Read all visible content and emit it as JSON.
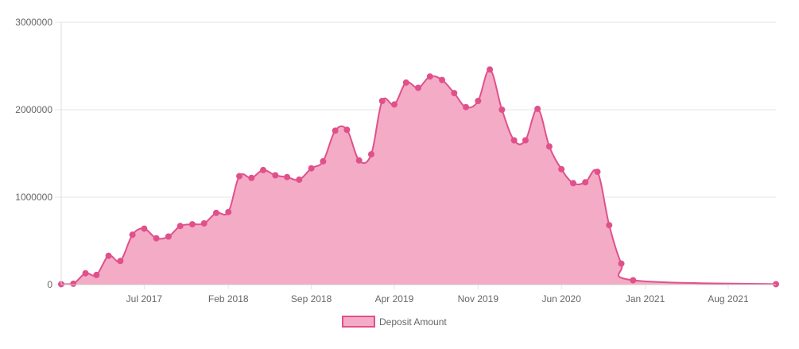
{
  "chart_data": {
    "type": "area",
    "x_axis": {
      "type": "time",
      "tick_labels": [
        "Jul 2017",
        "Feb 2018",
        "Sep 2018",
        "Apr 2019",
        "Nov 2019",
        "Jun 2020",
        "Jan 2021",
        "Aug 2021"
      ],
      "tick_dates": [
        "2017-07-01",
        "2018-02-01",
        "2018-09-01",
        "2019-04-01",
        "2019-11-01",
        "2020-06-01",
        "2021-01-01",
        "2021-08-01"
      ],
      "range": [
        "2016-12-01",
        "2021-12-01"
      ]
    },
    "y_axis": {
      "ticks": [
        0,
        1000000,
        2000000,
        3000000
      ],
      "tick_labels": [
        "0",
        "1000000",
        "2000000",
        "3000000"
      ],
      "range": [
        0,
        3000000
      ]
    },
    "grid": true,
    "legend": {
      "position": "bottom"
    },
    "series": [
      {
        "name": "Deposit Amount",
        "color": "#e0518b",
        "fill": "#f4abc5",
        "x": [
          "2016-12-01",
          "2017-01-01",
          "2017-02-01",
          "2017-03-01",
          "2017-04-01",
          "2017-05-01",
          "2017-06-01",
          "2017-07-01",
          "2017-08-01",
          "2017-09-01",
          "2017-10-01",
          "2017-11-01",
          "2017-12-01",
          "2018-01-01",
          "2018-02-01",
          "2018-03-01",
          "2018-04-01",
          "2018-05-01",
          "2018-06-01",
          "2018-07-01",
          "2018-08-01",
          "2018-09-01",
          "2018-10-01",
          "2018-11-01",
          "2018-12-01",
          "2019-01-01",
          "2019-02-01",
          "2019-03-01",
          "2019-04-01",
          "2019-05-01",
          "2019-06-01",
          "2019-07-01",
          "2019-08-01",
          "2019-09-01",
          "2019-10-01",
          "2019-11-01",
          "2019-12-01",
          "2020-01-01",
          "2020-02-01",
          "2020-03-01",
          "2020-04-01",
          "2020-05-01",
          "2020-06-01",
          "2020-07-01",
          "2020-08-01",
          "2020-09-01",
          "2020-10-01",
          "2020-11-01",
          "2020-12-01",
          "2021-12-01"
        ],
        "values": [
          5000,
          10000,
          130000,
          110000,
          330000,
          270000,
          570000,
          640000,
          530000,
          550000,
          670000,
          690000,
          700000,
          820000,
          830000,
          1240000,
          1220000,
          1310000,
          1250000,
          1230000,
          1200000,
          1330000,
          1410000,
          1760000,
          1770000,
          1420000,
          1490000,
          2100000,
          2060000,
          2310000,
          2250000,
          2380000,
          2340000,
          2190000,
          2030000,
          2100000,
          2460000,
          2000000,
          1650000,
          1650000,
          2010000,
          1580000,
          1320000,
          1160000,
          1170000,
          1290000,
          680000,
          240000,
          50000,
          5000
        ]
      }
    ]
  }
}
